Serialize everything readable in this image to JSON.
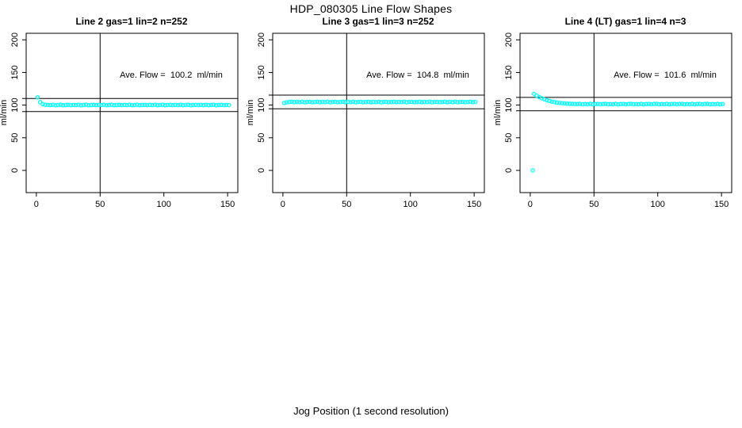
{
  "page": {
    "title": "HDP_080305  Line Flow Shapes",
    "xlabel": "Jog Position (1 second resolution)",
    "background": "#FFFFFF",
    "foreground": "#000000",
    "point_color": "#00FFFF"
  },
  "chart_data": [
    {
      "type": "scatter",
      "title": "Line 2 gas=1 lin=2 n=252",
      "annotation": "Ave. Flow =  100.2  ml/min",
      "ave_flow_ml_min": 100.2,
      "n": 252,
      "ylabel": "ml/min",
      "xticks": [
        0,
        50,
        100,
        150
      ],
      "yticks": [
        0,
        50,
        100,
        150,
        200
      ],
      "xlim": [
        -8,
        158
      ],
      "ylim": [
        -34,
        210
      ],
      "vlines": [
        50
      ],
      "hlines": [
        90.2,
        110.2
      ],
      "marker": "open-circle",
      "point_color": "#00FFFF",
      "points": [
        [
          1,
          112
        ],
        [
          3,
          104.5
        ],
        [
          5,
          101.5
        ],
        [
          7,
          100.6
        ],
        [
          9,
          100.3
        ],
        [
          11,
          100.0
        ],
        [
          13,
          100.5
        ],
        [
          15,
          99.9
        ],
        [
          17,
          100.2
        ],
        [
          19,
          100.6
        ],
        [
          21,
          99.8
        ],
        [
          23,
          100.1
        ],
        [
          25,
          100.4
        ],
        [
          27,
          100.0
        ],
        [
          29,
          100.3
        ],
        [
          31,
          100.0
        ],
        [
          33,
          100.5
        ],
        [
          35,
          99.9
        ],
        [
          37,
          100.2
        ],
        [
          39,
          100.6
        ],
        [
          41,
          99.8
        ],
        [
          43,
          100.1
        ],
        [
          45,
          100.4
        ],
        [
          47,
          100.0
        ],
        [
          49,
          100.3
        ],
        [
          51,
          100.0
        ],
        [
          53,
          100.5
        ],
        [
          55,
          99.9
        ],
        [
          57,
          100.2
        ],
        [
          59,
          100.6
        ],
        [
          61,
          99.8
        ],
        [
          63,
          100.1
        ],
        [
          65,
          100.4
        ],
        [
          67,
          100.0
        ],
        [
          69,
          100.3
        ],
        [
          71,
          100.0
        ],
        [
          73,
          100.5
        ],
        [
          75,
          99.9
        ],
        [
          77,
          100.2
        ],
        [
          79,
          100.6
        ],
        [
          81,
          99.8
        ],
        [
          83,
          100.1
        ],
        [
          85,
          100.4
        ],
        [
          87,
          100.0
        ],
        [
          89,
          100.3
        ],
        [
          91,
          100.0
        ],
        [
          93,
          100.5
        ],
        [
          95,
          99.9
        ],
        [
          97,
          100.2
        ],
        [
          99,
          100.6
        ],
        [
          101,
          99.8
        ],
        [
          103,
          100.1
        ],
        [
          105,
          100.4
        ],
        [
          107,
          100.0
        ],
        [
          109,
          100.3
        ],
        [
          111,
          100.0
        ],
        [
          113,
          100.5
        ],
        [
          115,
          99.9
        ],
        [
          117,
          100.2
        ],
        [
          119,
          100.6
        ],
        [
          121,
          99.8
        ],
        [
          123,
          100.1
        ],
        [
          125,
          100.4
        ],
        [
          127,
          100.0
        ],
        [
          129,
          100.3
        ],
        [
          131,
          100.0
        ],
        [
          133,
          100.5
        ],
        [
          135,
          99.9
        ],
        [
          137,
          100.2
        ],
        [
          139,
          100.6
        ],
        [
          141,
          99.8
        ],
        [
          143,
          100.1
        ],
        [
          145,
          100.4
        ],
        [
          147,
          100.0
        ],
        [
          149,
          100.3
        ],
        [
          151,
          100.0
        ]
      ]
    },
    {
      "type": "scatter",
      "title": "Line 3 gas=1 lin=3 n=252",
      "annotation": "Ave. Flow =  104.8  ml/min",
      "ave_flow_ml_min": 104.8,
      "n": 252,
      "ylabel": "ml/min",
      "xticks": [
        0,
        50,
        100,
        150
      ],
      "yticks": [
        0,
        50,
        100,
        150,
        200
      ],
      "xlim": [
        -8,
        158
      ],
      "ylim": [
        -34,
        210
      ],
      "vlines": [
        50
      ],
      "hlines": [
        94.3,
        115.3
      ],
      "marker": "open-circle",
      "point_color": "#00FFFF",
      "points": [
        [
          1,
          103.2
        ],
        [
          3,
          104.3
        ],
        [
          5,
          104.8
        ],
        [
          7,
          105.1
        ],
        [
          9,
          104.5
        ],
        [
          11,
          104.9
        ],
        [
          13,
          104.6
        ],
        [
          15,
          105.2
        ],
        [
          17,
          104.4
        ],
        [
          19,
          104.8
        ],
        [
          21,
          105.0
        ],
        [
          23,
          104.6
        ],
        [
          25,
          104.8
        ],
        [
          27,
          105.1
        ],
        [
          29,
          104.5
        ],
        [
          31,
          104.9
        ],
        [
          33,
          104.6
        ],
        [
          35,
          105.2
        ],
        [
          37,
          104.4
        ],
        [
          39,
          104.8
        ],
        [
          41,
          105.0
        ],
        [
          43,
          104.6
        ],
        [
          45,
          104.8
        ],
        [
          47,
          105.1
        ],
        [
          49,
          104.5
        ],
        [
          51,
          104.9
        ],
        [
          53,
          104.6
        ],
        [
          55,
          105.2
        ],
        [
          57,
          104.4
        ],
        [
          59,
          104.8
        ],
        [
          61,
          105.0
        ],
        [
          63,
          104.6
        ],
        [
          65,
          104.8
        ],
        [
          67,
          105.1
        ],
        [
          69,
          104.5
        ],
        [
          71,
          104.9
        ],
        [
          73,
          104.6
        ],
        [
          75,
          105.2
        ],
        [
          77,
          104.4
        ],
        [
          79,
          104.8
        ],
        [
          81,
          105.0
        ],
        [
          83,
          104.6
        ],
        [
          85,
          104.8
        ],
        [
          87,
          105.1
        ],
        [
          89,
          104.5
        ],
        [
          91,
          104.9
        ],
        [
          93,
          104.6
        ],
        [
          95,
          105.2
        ],
        [
          97,
          104.4
        ],
        [
          99,
          104.8
        ],
        [
          101,
          105.0
        ],
        [
          103,
          104.6
        ],
        [
          105,
          104.8
        ],
        [
          107,
          105.1
        ],
        [
          109,
          104.5
        ],
        [
          111,
          104.9
        ],
        [
          113,
          104.6
        ],
        [
          115,
          105.2
        ],
        [
          117,
          104.4
        ],
        [
          119,
          104.8
        ],
        [
          121,
          105.0
        ],
        [
          123,
          104.6
        ],
        [
          125,
          104.8
        ],
        [
          127,
          105.1
        ],
        [
          129,
          104.5
        ],
        [
          131,
          104.9
        ],
        [
          133,
          104.6
        ],
        [
          135,
          105.2
        ],
        [
          137,
          104.4
        ],
        [
          139,
          104.8
        ],
        [
          141,
          105.0
        ],
        [
          143,
          104.6
        ],
        [
          145,
          104.8
        ],
        [
          147,
          105.1
        ],
        [
          149,
          104.5
        ],
        [
          151,
          104.9
        ]
      ]
    },
    {
      "type": "scatter",
      "title": "Line 4 (LT) gas=1 lin=4 n=3",
      "annotation": "Ave. Flow =  101.6  ml/min",
      "ave_flow_ml_min": 101.6,
      "n": 3,
      "ylabel": "ml/min",
      "xticks": [
        0,
        50,
        100,
        150
      ],
      "yticks": [
        0,
        50,
        100,
        150,
        200
      ],
      "xlim": [
        -8,
        158
      ],
      "ylim": [
        -34,
        210
      ],
      "vlines": [
        50
      ],
      "hlines": [
        91.4,
        111.8
      ],
      "marker": "open-circle",
      "point_color": "#00FFFF",
      "points": [
        [
          2,
          0
        ],
        [
          3,
          117.2
        ],
        [
          5,
          114.6
        ],
        [
          7,
          112.4
        ],
        [
          9,
          110.5
        ],
        [
          11,
          108.9
        ],
        [
          13,
          107.5
        ],
        [
          15,
          106.3
        ],
        [
          17,
          105.4
        ],
        [
          19,
          104.6
        ],
        [
          21,
          103.9
        ],
        [
          23,
          103.4
        ],
        [
          25,
          102.9
        ],
        [
          27,
          102.6
        ],
        [
          29,
          102.3
        ],
        [
          31,
          102.1
        ],
        [
          33,
          101.9
        ],
        [
          35,
          101.8
        ],
        [
          37,
          101.6
        ],
        [
          39,
          101.9
        ],
        [
          41,
          101.3
        ],
        [
          43,
          101.7
        ],
        [
          45,
          101.4
        ],
        [
          47,
          102.0
        ],
        [
          49,
          101.2
        ],
        [
          51,
          101.6
        ],
        [
          53,
          101.8
        ],
        [
          55,
          101.4
        ],
        [
          57,
          101.6
        ],
        [
          59,
          101.9
        ],
        [
          61,
          101.3
        ],
        [
          63,
          101.7
        ],
        [
          65,
          101.4
        ],
        [
          67,
          102.0
        ],
        [
          69,
          101.2
        ],
        [
          71,
          101.6
        ],
        [
          73,
          101.8
        ],
        [
          75,
          101.4
        ],
        [
          77,
          101.6
        ],
        [
          79,
          101.9
        ],
        [
          81,
          101.3
        ],
        [
          83,
          101.7
        ],
        [
          85,
          101.4
        ],
        [
          87,
          102.0
        ],
        [
          89,
          101.2
        ],
        [
          91,
          101.6
        ],
        [
          93,
          101.8
        ],
        [
          95,
          101.4
        ],
        [
          97,
          101.6
        ],
        [
          99,
          101.9
        ],
        [
          101,
          101.3
        ],
        [
          103,
          101.7
        ],
        [
          105,
          101.4
        ],
        [
          107,
          102.0
        ],
        [
          109,
          101.2
        ],
        [
          111,
          101.6
        ],
        [
          113,
          101.8
        ],
        [
          115,
          101.4
        ],
        [
          117,
          101.6
        ],
        [
          119,
          101.9
        ],
        [
          121,
          101.3
        ],
        [
          123,
          101.7
        ],
        [
          125,
          101.4
        ],
        [
          127,
          102.0
        ],
        [
          129,
          101.2
        ],
        [
          131,
          101.6
        ],
        [
          133,
          101.8
        ],
        [
          135,
          101.4
        ],
        [
          137,
          101.6
        ],
        [
          139,
          101.9
        ],
        [
          141,
          101.3
        ],
        [
          143,
          101.7
        ],
        [
          145,
          101.4
        ],
        [
          147,
          102.0
        ],
        [
          149,
          101.2
        ],
        [
          151,
          101.6
        ]
      ]
    }
  ]
}
